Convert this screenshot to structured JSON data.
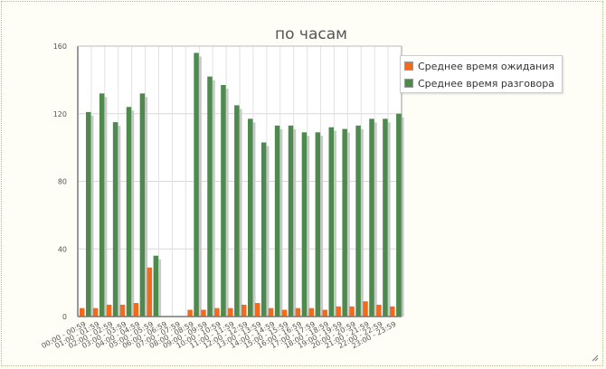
{
  "chart_data": {
    "type": "bar",
    "title": "по часам",
    "xlabel": "",
    "ylabel": "",
    "ylim": [
      0,
      160
    ],
    "yticks": [
      0,
      40,
      80,
      120,
      160
    ],
    "grid": true,
    "legend_position": "top-right",
    "categories": [
      "00:00 - 00:59",
      "01:00 - 01:59",
      "02:00 - 02:59",
      "03:00 - 03:59",
      "04:00 - 04:59",
      "05:00 - 05:59",
      "06:00 - 06:59",
      "07:00 - 07:59",
      "08:00 - 08:59",
      "09:00 - 09:59",
      "10:00 - 10:59",
      "11:00 - 11:59",
      "12:00 - 12:59",
      "13:00 - 13:59",
      "14:00 - 14:59",
      "15:00 - 15:59",
      "16:00 - 16:59",
      "17:00 - 17:59",
      "18:00 - 18:59",
      "19:00 - 19:59",
      "20:00 - 20:59",
      "21:00 - 21:59",
      "22:00 - 22:59",
      "23:00 - 23:59"
    ],
    "series": [
      {
        "name": "Среднее время ожидания",
        "color": "#f26b1d",
        "values": [
          5,
          5,
          7,
          7,
          8,
          29,
          0,
          0,
          4,
          4,
          5,
          5,
          7,
          8,
          5,
          4,
          5,
          5,
          4,
          6,
          6,
          9,
          7,
          6
        ]
      },
      {
        "name": "Среднее время разговора",
        "color": "#4e8a4e",
        "values": [
          121,
          132,
          115,
          124,
          132,
          36,
          0,
          0,
          156,
          142,
          137,
          125,
          117,
          103,
          113,
          113,
          109,
          109,
          112,
          111,
          113,
          117,
          117,
          120
        ]
      }
    ]
  }
}
